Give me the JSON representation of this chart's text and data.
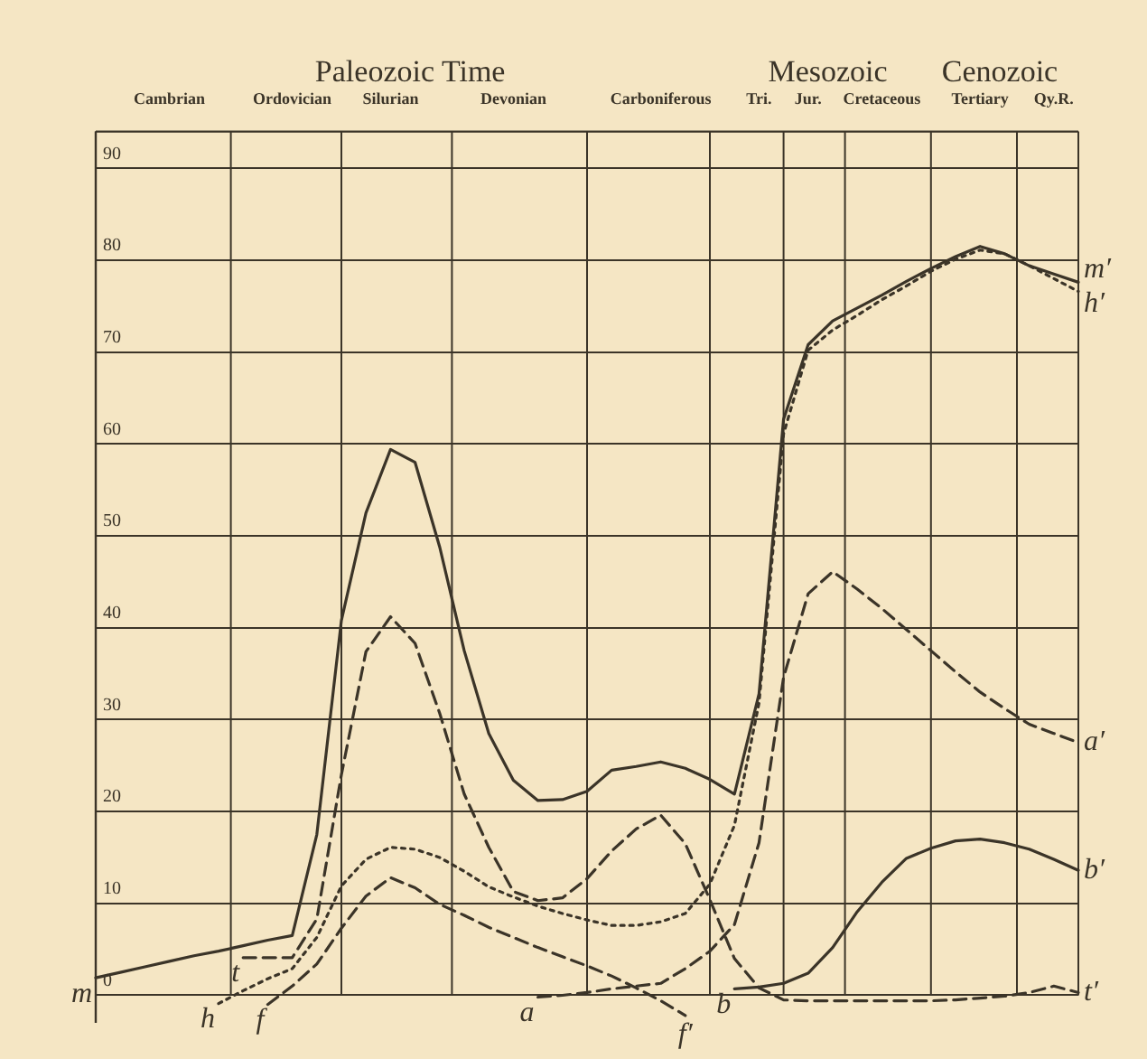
{
  "chart_data": {
    "type": "line",
    "categories": [
      null,
      null,
      null,
      "Cambrian",
      null,
      null,
      null,
      null,
      "Ordovician",
      null,
      null,
      null,
      "Silurian",
      null,
      null,
      null,
      null,
      "Devonian",
      null,
      null,
      null,
      null,
      null,
      "Carboniferous",
      null,
      null,
      null,
      "Tri.",
      null,
      "Jur.",
      null,
      null,
      "Cretaceous",
      null,
      null,
      null,
      "Tertiary",
      null,
      null,
      "Qy.R.",
      null
    ],
    "ylim": [
      -3,
      94
    ],
    "yticks": [
      0,
      10,
      20,
      30,
      40,
      50,
      60,
      70,
      80,
      90
    ],
    "grid": true,
    "legend": false,
    "marker": "none",
    "series": [
      {
        "name": "m",
        "color": "#3b3428",
        "line_style": "solid",
        "values": [
          1.9,
          2.5,
          3.1,
          3.7,
          4.3,
          4.8,
          5.4,
          6.0,
          6.5,
          17.5,
          40.8,
          52.5,
          59.4,
          58,
          48.8,
          37.5,
          28.5,
          23.4,
          21.2,
          21.3,
          22.2,
          24.5,
          24.9,
          25.4,
          24.7,
          23.5,
          21.9,
          32.8,
          62.7,
          70.8,
          73.4,
          74.8,
          76.2,
          77.7,
          79.1,
          80.4,
          81.5,
          80.7,
          79.4,
          78.5,
          77.6
        ]
      },
      {
        "name": "h",
        "color": "#3b3428",
        "line_style": "dotted",
        "values": [
          null,
          null,
          null,
          null,
          null,
          -0.9,
          0.5,
          1.8,
          2.9,
          6.3,
          11.9,
          14.8,
          16.1,
          15.9,
          15.0,
          13.5,
          11.8,
          10.7,
          9.7,
          8.9,
          8.2,
          7.6,
          7.6,
          8.0,
          8.9,
          12.1,
          18.5,
          31.8,
          61.1,
          70.2,
          72.4,
          74.0,
          75.7,
          77.2,
          78.8,
          80.1,
          81.1,
          80.7,
          79.4,
          78.0,
          76.6
        ]
      },
      {
        "name": "t",
        "color": "#3b3428",
        "line_style": "dashed",
        "values": [
          null,
          null,
          null,
          null,
          null,
          null,
          4.1,
          4.1,
          4.1,
          8.3,
          24.0,
          37.4,
          41.2,
          38.3,
          30.7,
          21.9,
          16.1,
          11.3,
          10.3,
          10.6,
          12.7,
          15.7,
          18.1,
          19.6,
          16.5,
          10.4,
          4.0,
          0.8,
          -0.5,
          -0.6,
          -0.6,
          -0.6,
          -0.6,
          -0.6,
          -0.6,
          -0.5,
          -0.3,
          -0.1,
          0.3,
          1.0,
          0.3
        ]
      },
      {
        "name": "f",
        "color": "#3b3428",
        "line_style": "dashed",
        "values": [
          null,
          null,
          null,
          null,
          null,
          null,
          null,
          -1.0,
          1.0,
          3.4,
          7.3,
          10.8,
          12.8,
          11.7,
          9.9,
          8.7,
          7.4,
          6.3,
          5.2,
          4.2,
          3.2,
          2.1,
          0.8,
          -0.6,
          -2.2,
          null,
          null,
          null,
          null,
          null,
          null,
          null,
          null,
          null,
          null,
          null,
          null,
          null,
          null,
          null,
          null
        ]
      },
      {
        "name": "a",
        "color": "#3b3428",
        "line_style": "dashed",
        "values": [
          null,
          null,
          null,
          null,
          null,
          null,
          null,
          null,
          null,
          null,
          null,
          null,
          null,
          null,
          null,
          null,
          null,
          null,
          -0.2,
          0.0,
          0.3,
          0.7,
          1.0,
          1.3,
          2.9,
          4.8,
          7.7,
          16.6,
          34.6,
          43.7,
          46.1,
          44.2,
          42.1,
          39.8,
          37.5,
          35.2,
          33.0,
          31.2,
          29.5,
          28.5,
          27.5
        ]
      },
      {
        "name": "b",
        "color": "#3b3428",
        "line_style": "solid",
        "values": [
          null,
          null,
          null,
          null,
          null,
          null,
          null,
          null,
          null,
          null,
          null,
          null,
          null,
          null,
          null,
          null,
          null,
          null,
          null,
          null,
          null,
          null,
          null,
          null,
          null,
          null,
          0.7,
          0.9,
          1.3,
          2.4,
          5.2,
          9.1,
          12.3,
          14.9,
          16.0,
          16.8,
          17.0,
          16.6,
          15.9,
          14.8,
          13.6
        ]
      }
    ],
    "annotations": [
      "Paleozoic Time",
      "Mesozoic",
      "Cenozoic",
      "m′",
      "h′",
      "t′",
      "f′",
      "a′",
      "b′"
    ]
  }
}
